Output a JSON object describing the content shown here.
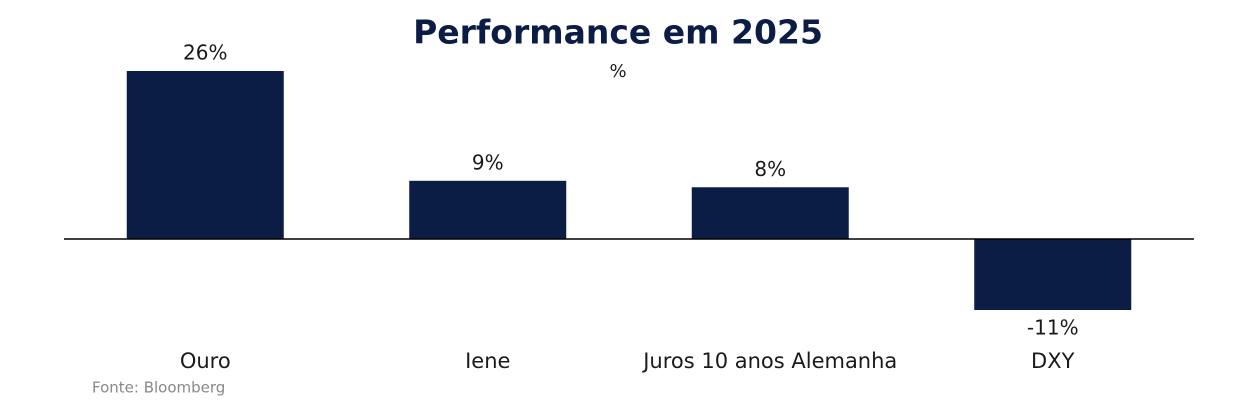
{
  "chart_data": {
    "type": "bar",
    "title": "Performance em 2025",
    "subtitle": "%",
    "categories": [
      "Ouro",
      "Iene",
      "Juros 10 anos Alemanha",
      "DXY"
    ],
    "values": [
      26,
      9,
      8,
      -11
    ],
    "value_labels": [
      "26%",
      "9%",
      "8%",
      "-11%"
    ],
    "color": "#0b1c45",
    "source": "Fonte: Bloomberg"
  }
}
